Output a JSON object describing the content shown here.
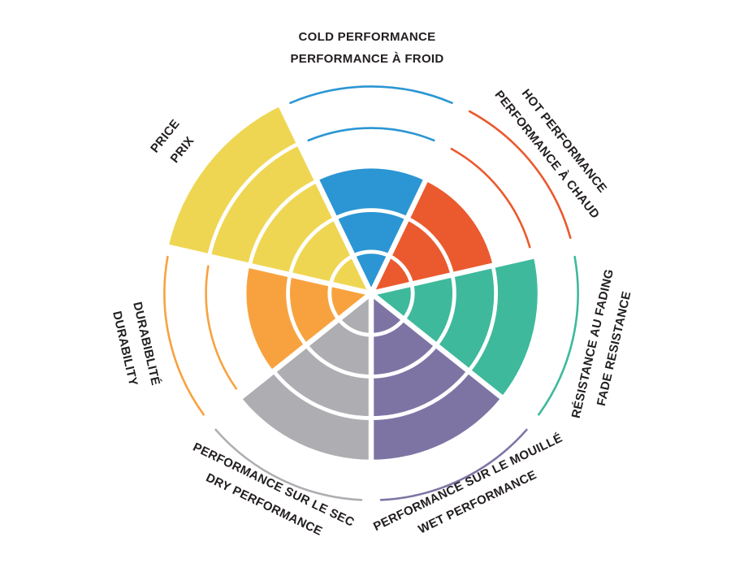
{
  "chart_data": {
    "type": "polar",
    "subtype": "sector-rating-wheel",
    "rings": 5,
    "max_rating": 5,
    "background": "#ffffff",
    "label_color": "#221e21",
    "ring_gap_color": "#ffffff",
    "series": [
      {
        "id": "cold-performance",
        "label_lines": [
          "COLD PERFORMANCE",
          "PERFORMANCE À FROID"
        ],
        "value": 3,
        "color": "#2b96d3"
      },
      {
        "id": "hot-performance",
        "label_lines": [
          "HOT PERFORMANCE",
          "PERFORMANCE À CHAUD"
        ],
        "value": 3,
        "color": "#ea5a2e"
      },
      {
        "id": "fade-resistance",
        "label_lines": [
          "RÉSISTANCE AU FADING",
          "FADE RESISTANCE"
        ],
        "value": 4,
        "color": "#3eb99c"
      },
      {
        "id": "wet-performance",
        "label_lines": [
          "PERFORMANCE SUR LE MOUILLÉ",
          "WET PERFORMANCE"
        ],
        "value": 4,
        "color": "#7e74a4"
      },
      {
        "id": "dry-performance",
        "label_lines": [
          "PERFORMANCE SUR LE SEC",
          "DRY PERFORMANCE"
        ],
        "value": 4,
        "color": "#aeadb2"
      },
      {
        "id": "durability",
        "label_lines": [
          "DURABIBLITÉ",
          "DURABILITY"
        ],
        "value": 3,
        "color": "#f8a23f"
      },
      {
        "id": "price",
        "label_lines": [
          "PRICE",
          "PRIX"
        ],
        "value": 5,
        "color": "#efd652"
      }
    ]
  }
}
